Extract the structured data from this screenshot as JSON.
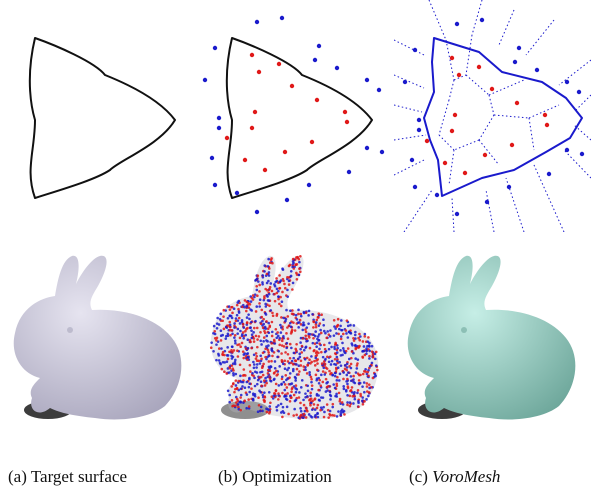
{
  "captions": {
    "a": {
      "label": "(a)",
      "text": "Target surface"
    },
    "b": {
      "label": "(b)",
      "text": "Optimization"
    },
    "c": {
      "label": "(c)",
      "text": "VoroMesh"
    }
  },
  "colors": {
    "outline": "#111111",
    "inner_point": "#e01818",
    "outer_point": "#1a1acc",
    "voronoi": "#1a1acc",
    "bunny_target": "#c9c7d8",
    "bunny_voromesh": "#9fd3c9"
  }
}
